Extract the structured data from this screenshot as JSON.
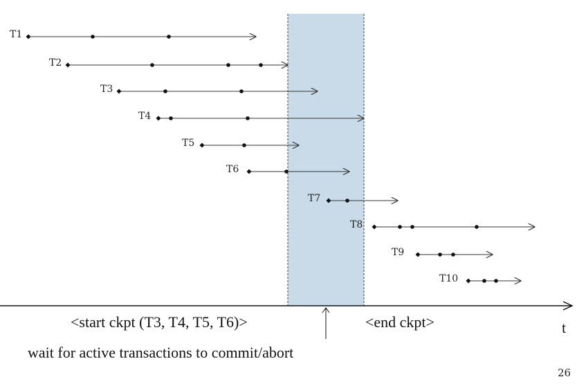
{
  "colors": {
    "checkpoint_region": "#c9dbe8",
    "line": "#333333",
    "axis": "#111111"
  },
  "transactions": [
    {
      "label": "T1"
    },
    {
      "label": "T2"
    },
    {
      "label": "T3"
    },
    {
      "label": "T4"
    },
    {
      "label": "T5"
    },
    {
      "label": "T6"
    },
    {
      "label": "T7"
    },
    {
      "label": "T8"
    },
    {
      "label": "T9"
    },
    {
      "label": "T10"
    }
  ],
  "start_ckpt": "<start ckpt (T3, T4, T5, T6)>",
  "end_ckpt": "<end ckpt>",
  "wait_note": "wait for active transactions to commit/abort",
  "axis_label": "t",
  "slide_number": "26"
}
